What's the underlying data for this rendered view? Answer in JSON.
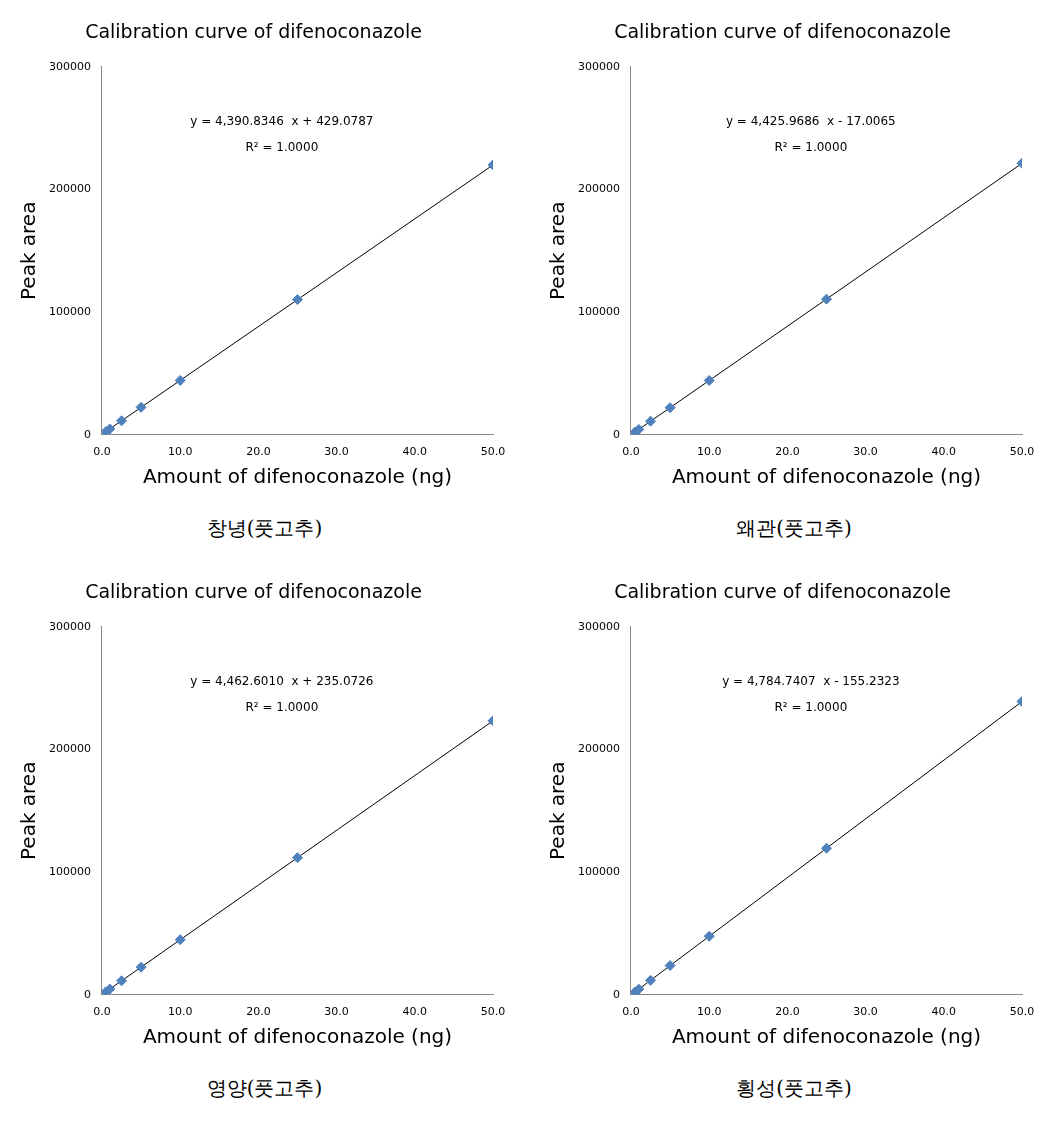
{
  "chart_data": [
    {
      "type": "scatter",
      "title": "Calibration curve of difenoconazole",
      "x_label": "Amount of difenoconazole (ng)",
      "y_label": "Peak area",
      "caption": "창녕(풋고추)",
      "x": [
        0.5,
        1,
        2.5,
        5,
        10,
        25,
        50
      ],
      "values": [
        2600,
        4800,
        11400,
        22400,
        44300,
        110200,
        220000
      ],
      "color": "#4f81bd",
      "marker": "diamond",
      "grid": false,
      "xlim": [
        0,
        50
      ],
      "xticks": [
        {
          "value": 0,
          "label": "0.0"
        },
        {
          "value": 10,
          "label": "10.0"
        },
        {
          "value": 20,
          "label": "20.0"
        },
        {
          "value": 30,
          "label": "30.0"
        },
        {
          "value": 40,
          "label": "40.0"
        },
        {
          "value": 50,
          "label": "50.0"
        }
      ],
      "ylim": [
        0,
        300000
      ],
      "yticks": [
        0,
        100000,
        200000,
        300000
      ],
      "fit": {
        "slope": 4390.8346,
        "intercept": 429.0787,
        "equation_label": "y = 4,390.8346  x + 429.0787",
        "r2": 1.0,
        "r2_label": "R² = 1.0000"
      }
    },
    {
      "type": "scatter",
      "title": "Calibration curve of difenoconazole",
      "x_label": "Amount of difenoconazole (ng)",
      "y_label": "Peak area",
      "caption": "왜관(풋고추)",
      "x": [
        0.5,
        1,
        2.5,
        5,
        10,
        25,
        50
      ],
      "values": [
        2200,
        4400,
        11100,
        22100,
        44300,
        110600,
        221300
      ],
      "color": "#4f81bd",
      "marker": "diamond",
      "grid": false,
      "xlim": [
        0,
        50
      ],
      "xticks": [
        {
          "value": 0,
          "label": "0.0"
        },
        {
          "value": 10,
          "label": "10.0"
        },
        {
          "value": 20,
          "label": "20.0"
        },
        {
          "value": 30,
          "label": "30.0"
        },
        {
          "value": 40,
          "label": "40.0"
        },
        {
          "value": 50,
          "label": "50.0"
        }
      ],
      "ylim": [
        0,
        300000
      ],
      "yticks": [
        0,
        100000,
        200000,
        300000
      ],
      "fit": {
        "slope": 4425.9686,
        "intercept": -17.0065,
        "equation_label": "y = 4,425.9686  x - 17.0065",
        "r2": 1.0,
        "r2_label": "R² = 1.0000"
      }
    },
    {
      "type": "scatter",
      "title": "Calibration curve of difenoconazole",
      "x_label": "Amount of difenoconazole (ng)",
      "y_label": "Peak area",
      "caption": "영양(풋고추)",
      "x": [
        0.5,
        1,
        2.5,
        5,
        10,
        25,
        50
      ],
      "values": [
        2500,
        4700,
        11400,
        22500,
        44900,
        111800,
        223400
      ],
      "color": "#4f81bd",
      "marker": "diamond",
      "grid": false,
      "xlim": [
        0,
        50
      ],
      "xticks": [
        {
          "value": 0,
          "label": "0.0"
        },
        {
          "value": 10,
          "label": "10.0"
        },
        {
          "value": 20,
          "label": "20.0"
        },
        {
          "value": 30,
          "label": "30.0"
        },
        {
          "value": 40,
          "label": "40.0"
        },
        {
          "value": 50,
          "label": "50.0"
        }
      ],
      "ylim": [
        0,
        300000
      ],
      "yticks": [
        0,
        100000,
        200000,
        300000
      ],
      "fit": {
        "slope": 4462.601,
        "intercept": 235.0726,
        "equation_label": "y = 4,462.6010  x + 235.0726",
        "r2": 1.0,
        "r2_label": "R² = 1.0000"
      }
    },
    {
      "type": "scatter",
      "title": "Calibration curve of difenoconazole",
      "x_label": "Amount of difenoconazole (ng)",
      "y_label": "Peak area",
      "caption": "횡성(풋고추)",
      "x": [
        0.5,
        1,
        2.5,
        5,
        10,
        25,
        50
      ],
      "values": [
        2200,
        4600,
        11800,
        23800,
        47700,
        119500,
        239100
      ],
      "color": "#4f81bd",
      "marker": "diamond",
      "grid": false,
      "xlim": [
        0,
        50
      ],
      "xticks": [
        {
          "value": 0,
          "label": "0.0"
        },
        {
          "value": 10,
          "label": "10.0"
        },
        {
          "value": 20,
          "label": "20.0"
        },
        {
          "value": 30,
          "label": "30.0"
        },
        {
          "value": 40,
          "label": "40.0"
        },
        {
          "value": 50,
          "label": "50.0"
        }
      ],
      "ylim": [
        0,
        300000
      ],
      "yticks": [
        0,
        100000,
        200000,
        300000
      ],
      "fit": {
        "slope": 4784.7407,
        "intercept": -155.2323,
        "equation_label": "y = 4,784.7407  x - 155.2323",
        "r2": 1.0,
        "r2_label": "R² = 1.0000"
      }
    }
  ]
}
